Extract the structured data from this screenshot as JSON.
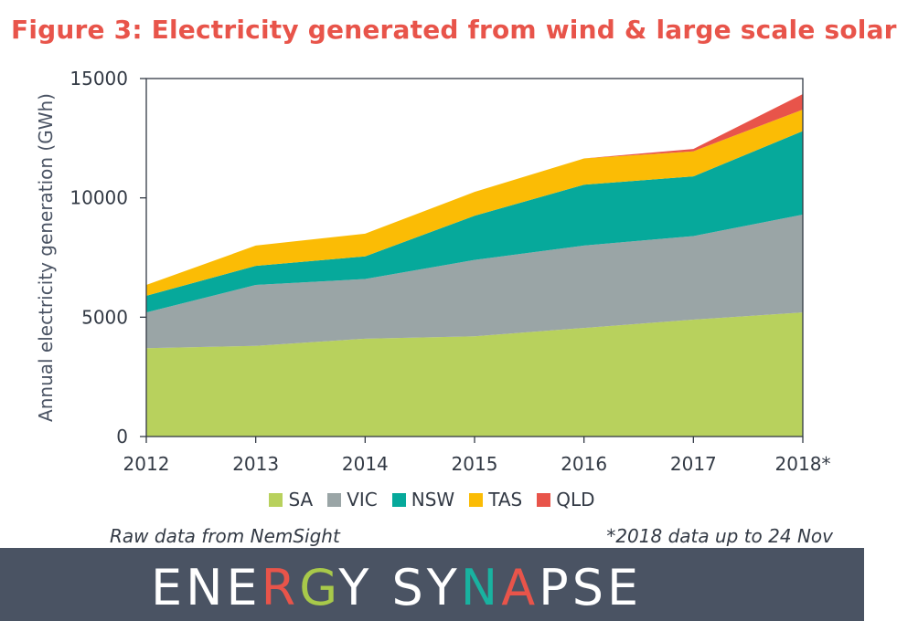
{
  "title": "Figure 3: Electricity generated from wind & large scale solar",
  "source": "Raw data from NemSight",
  "note": "*2018 data up to 24 Nov",
  "brand": {
    "text": "ENERGY SYNAPSE",
    "letter_colors": [
      "#ffffff",
      "#ffffff",
      "#ffffff",
      "#e8544a",
      "#a8c94a",
      "#ffffff",
      "#ffffff",
      "#ffffff",
      "#ffffff",
      "#19b2a0",
      "#e8544a",
      "#ffffff",
      "#ffffff",
      "#ffffff"
    ],
    "background": "#4a5363"
  },
  "chart_data": {
    "type": "area",
    "stacked": true,
    "categories": [
      "2012",
      "2013",
      "2014",
      "2015",
      "2016",
      "2017",
      "2018*"
    ],
    "ylabel": "Annual electricity generation (GWh)",
    "xlabel": "",
    "ylim": [
      0,
      15000
    ],
    "yticks": [
      "0",
      "5000",
      "10000",
      "15000"
    ],
    "grid": false,
    "legend_position": "bottom",
    "series": [
      {
        "name": "SA",
        "color": "#b8d15d",
        "values": [
          3700,
          3800,
          4100,
          4200,
          4550,
          4900,
          5200
        ]
      },
      {
        "name": "VIC",
        "color": "#9aa5a6",
        "values": [
          1500,
          2550,
          2500,
          3200,
          3450,
          3500,
          4100
        ]
      },
      {
        "name": "NSW",
        "color": "#06a99b",
        "values": [
          700,
          800,
          950,
          1850,
          2550,
          2500,
          3500
        ]
      },
      {
        "name": "TAS",
        "color": "#fbbc05",
        "values": [
          450,
          850,
          950,
          1000,
          1100,
          1050,
          900
        ]
      },
      {
        "name": "QLD",
        "color": "#e8544a",
        "values": [
          0,
          0,
          0,
          0,
          0,
          100,
          650
        ]
      }
    ]
  }
}
